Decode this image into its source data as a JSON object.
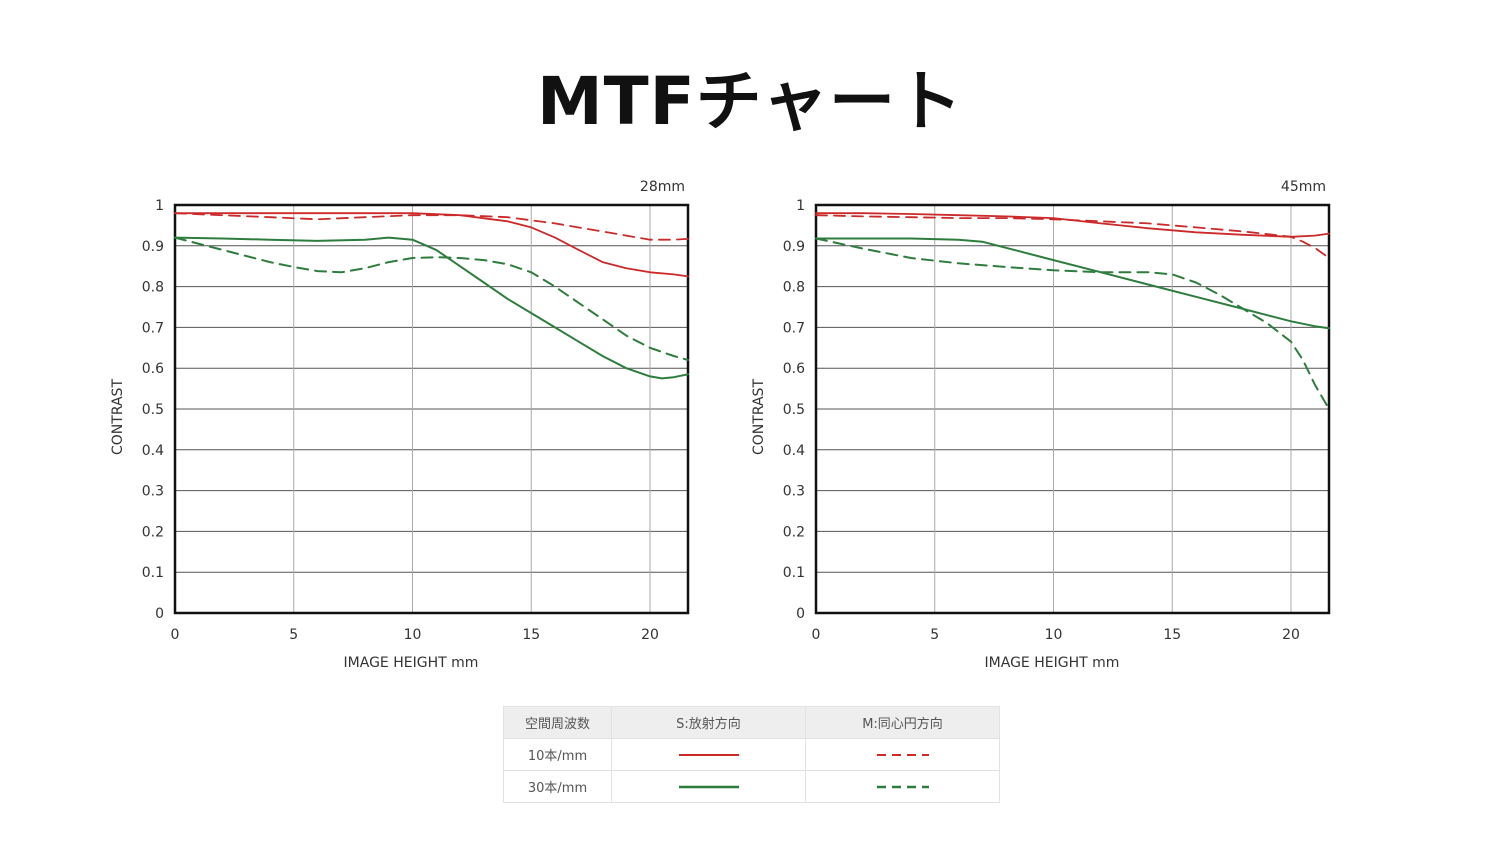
{
  "title": "MTFチャート",
  "chart_data": [
    {
      "type": "line",
      "subtitle": "28mm",
      "xlabel": "IMAGE HEIGHT   mm",
      "ylabel": "CONTRAST",
      "xlim": [
        0,
        21.6
      ],
      "ylim": [
        0,
        1
      ],
      "xticks": [
        "0",
        "5",
        "10",
        "15",
        "20"
      ],
      "yticks": [
        "0",
        "0.1",
        "0.2",
        "0.3",
        "0.4",
        "0.5",
        "0.6",
        "0.7",
        "0.8",
        "0.9",
        "1"
      ],
      "grid": true,
      "series": [
        {
          "name": "10本/mm S",
          "color": "#cc2a2a",
          "dash": false,
          "x": [
            0,
            2,
            4,
            6,
            8,
            10,
            12,
            14,
            15,
            16,
            17,
            18,
            19,
            20,
            21,
            21.6
          ],
          "y": [
            0.98,
            0.98,
            0.98,
            0.98,
            0.98,
            0.98,
            0.975,
            0.96,
            0.945,
            0.92,
            0.89,
            0.86,
            0.845,
            0.835,
            0.83,
            0.825
          ]
        },
        {
          "name": "10本/mm M",
          "color": "#cc2a2a",
          "dash": true,
          "x": [
            0,
            2,
            4,
            6,
            8,
            10,
            12,
            14,
            16,
            18,
            19,
            20,
            21,
            21.6
          ],
          "y": [
            0.98,
            0.975,
            0.97,
            0.965,
            0.97,
            0.975,
            0.975,
            0.97,
            0.955,
            0.935,
            0.925,
            0.915,
            0.915,
            0.917
          ]
        },
        {
          "name": "30本/mm S",
          "color": "#2e7d3e",
          "dash": false,
          "x": [
            0,
            2,
            4,
            6,
            8,
            9,
            10,
            11,
            12,
            13,
            14,
            15,
            16,
            17,
            18,
            19,
            20,
            20.5,
            21,
            21.6
          ],
          "y": [
            0.92,
            0.918,
            0.915,
            0.912,
            0.915,
            0.92,
            0.915,
            0.89,
            0.85,
            0.81,
            0.77,
            0.735,
            0.7,
            0.665,
            0.63,
            0.6,
            0.58,
            0.575,
            0.578,
            0.585
          ]
        },
        {
          "name": "30本/mm M",
          "color": "#2e7d3e",
          "dash": true,
          "x": [
            0,
            2,
            4,
            5,
            6,
            7,
            8,
            9,
            10,
            11,
            12,
            13,
            14,
            15,
            16,
            17,
            18,
            19,
            20,
            21,
            21.6
          ],
          "y": [
            0.92,
            0.89,
            0.86,
            0.848,
            0.838,
            0.835,
            0.845,
            0.86,
            0.87,
            0.872,
            0.87,
            0.865,
            0.855,
            0.835,
            0.8,
            0.76,
            0.72,
            0.68,
            0.65,
            0.63,
            0.62
          ]
        }
      ]
    },
    {
      "type": "line",
      "subtitle": "45mm",
      "xlabel": "IMAGE HEIGHT   mm",
      "ylabel": "CONTRAST",
      "xlim": [
        0,
        21.6
      ],
      "ylim": [
        0,
        1
      ],
      "xticks": [
        "0",
        "5",
        "10",
        "15",
        "20"
      ],
      "yticks": [
        "0",
        "0.1",
        "0.2",
        "0.3",
        "0.4",
        "0.5",
        "0.6",
        "0.7",
        "0.8",
        "0.9",
        "1"
      ],
      "grid": true,
      "series": [
        {
          "name": "10本/mm S",
          "color": "#cc2a2a",
          "dash": false,
          "x": [
            0,
            2,
            4,
            6,
            8,
            10,
            12,
            14,
            16,
            18,
            20,
            21,
            21.6
          ],
          "y": [
            0.98,
            0.98,
            0.978,
            0.975,
            0.972,
            0.968,
            0.955,
            0.943,
            0.933,
            0.927,
            0.922,
            0.925,
            0.93
          ]
        },
        {
          "name": "10本/mm M",
          "color": "#cc2a2a",
          "dash": true,
          "x": [
            0,
            2,
            4,
            6,
            8,
            10,
            12,
            14,
            16,
            18,
            20,
            20.5,
            21,
            21.6
          ],
          "y": [
            0.975,
            0.972,
            0.97,
            0.968,
            0.968,
            0.965,
            0.96,
            0.955,
            0.945,
            0.935,
            0.922,
            0.91,
            0.895,
            0.87
          ]
        },
        {
          "name": "30本/mm S",
          "color": "#2e7d3e",
          "dash": false,
          "x": [
            0,
            2,
            4,
            6,
            7,
            8,
            10,
            12,
            14,
            16,
            18,
            19,
            20,
            21,
            21.6
          ],
          "y": [
            0.918,
            0.918,
            0.918,
            0.915,
            0.91,
            0.895,
            0.865,
            0.835,
            0.805,
            0.775,
            0.745,
            0.73,
            0.715,
            0.703,
            0.698
          ]
        },
        {
          "name": "30本/mm M",
          "color": "#2e7d3e",
          "dash": true,
          "x": [
            0,
            2,
            4,
            6,
            8,
            10,
            12,
            14,
            15,
            16,
            17,
            18,
            19,
            20,
            20.5,
            21,
            21.6
          ],
          "y": [
            0.918,
            0.893,
            0.87,
            0.857,
            0.848,
            0.84,
            0.835,
            0.835,
            0.83,
            0.81,
            0.78,
            0.745,
            0.71,
            0.665,
            0.62,
            0.56,
            0.5
          ]
        }
      ]
    }
  ],
  "legend": {
    "headers": [
      "空間周波数",
      "S:放射方向",
      "M:同心円方向"
    ],
    "rows": [
      {
        "label": "10本/mm",
        "color": "#cc2a2a"
      },
      {
        "label": "30本/mm",
        "color": "#2e7d3e"
      }
    ]
  }
}
